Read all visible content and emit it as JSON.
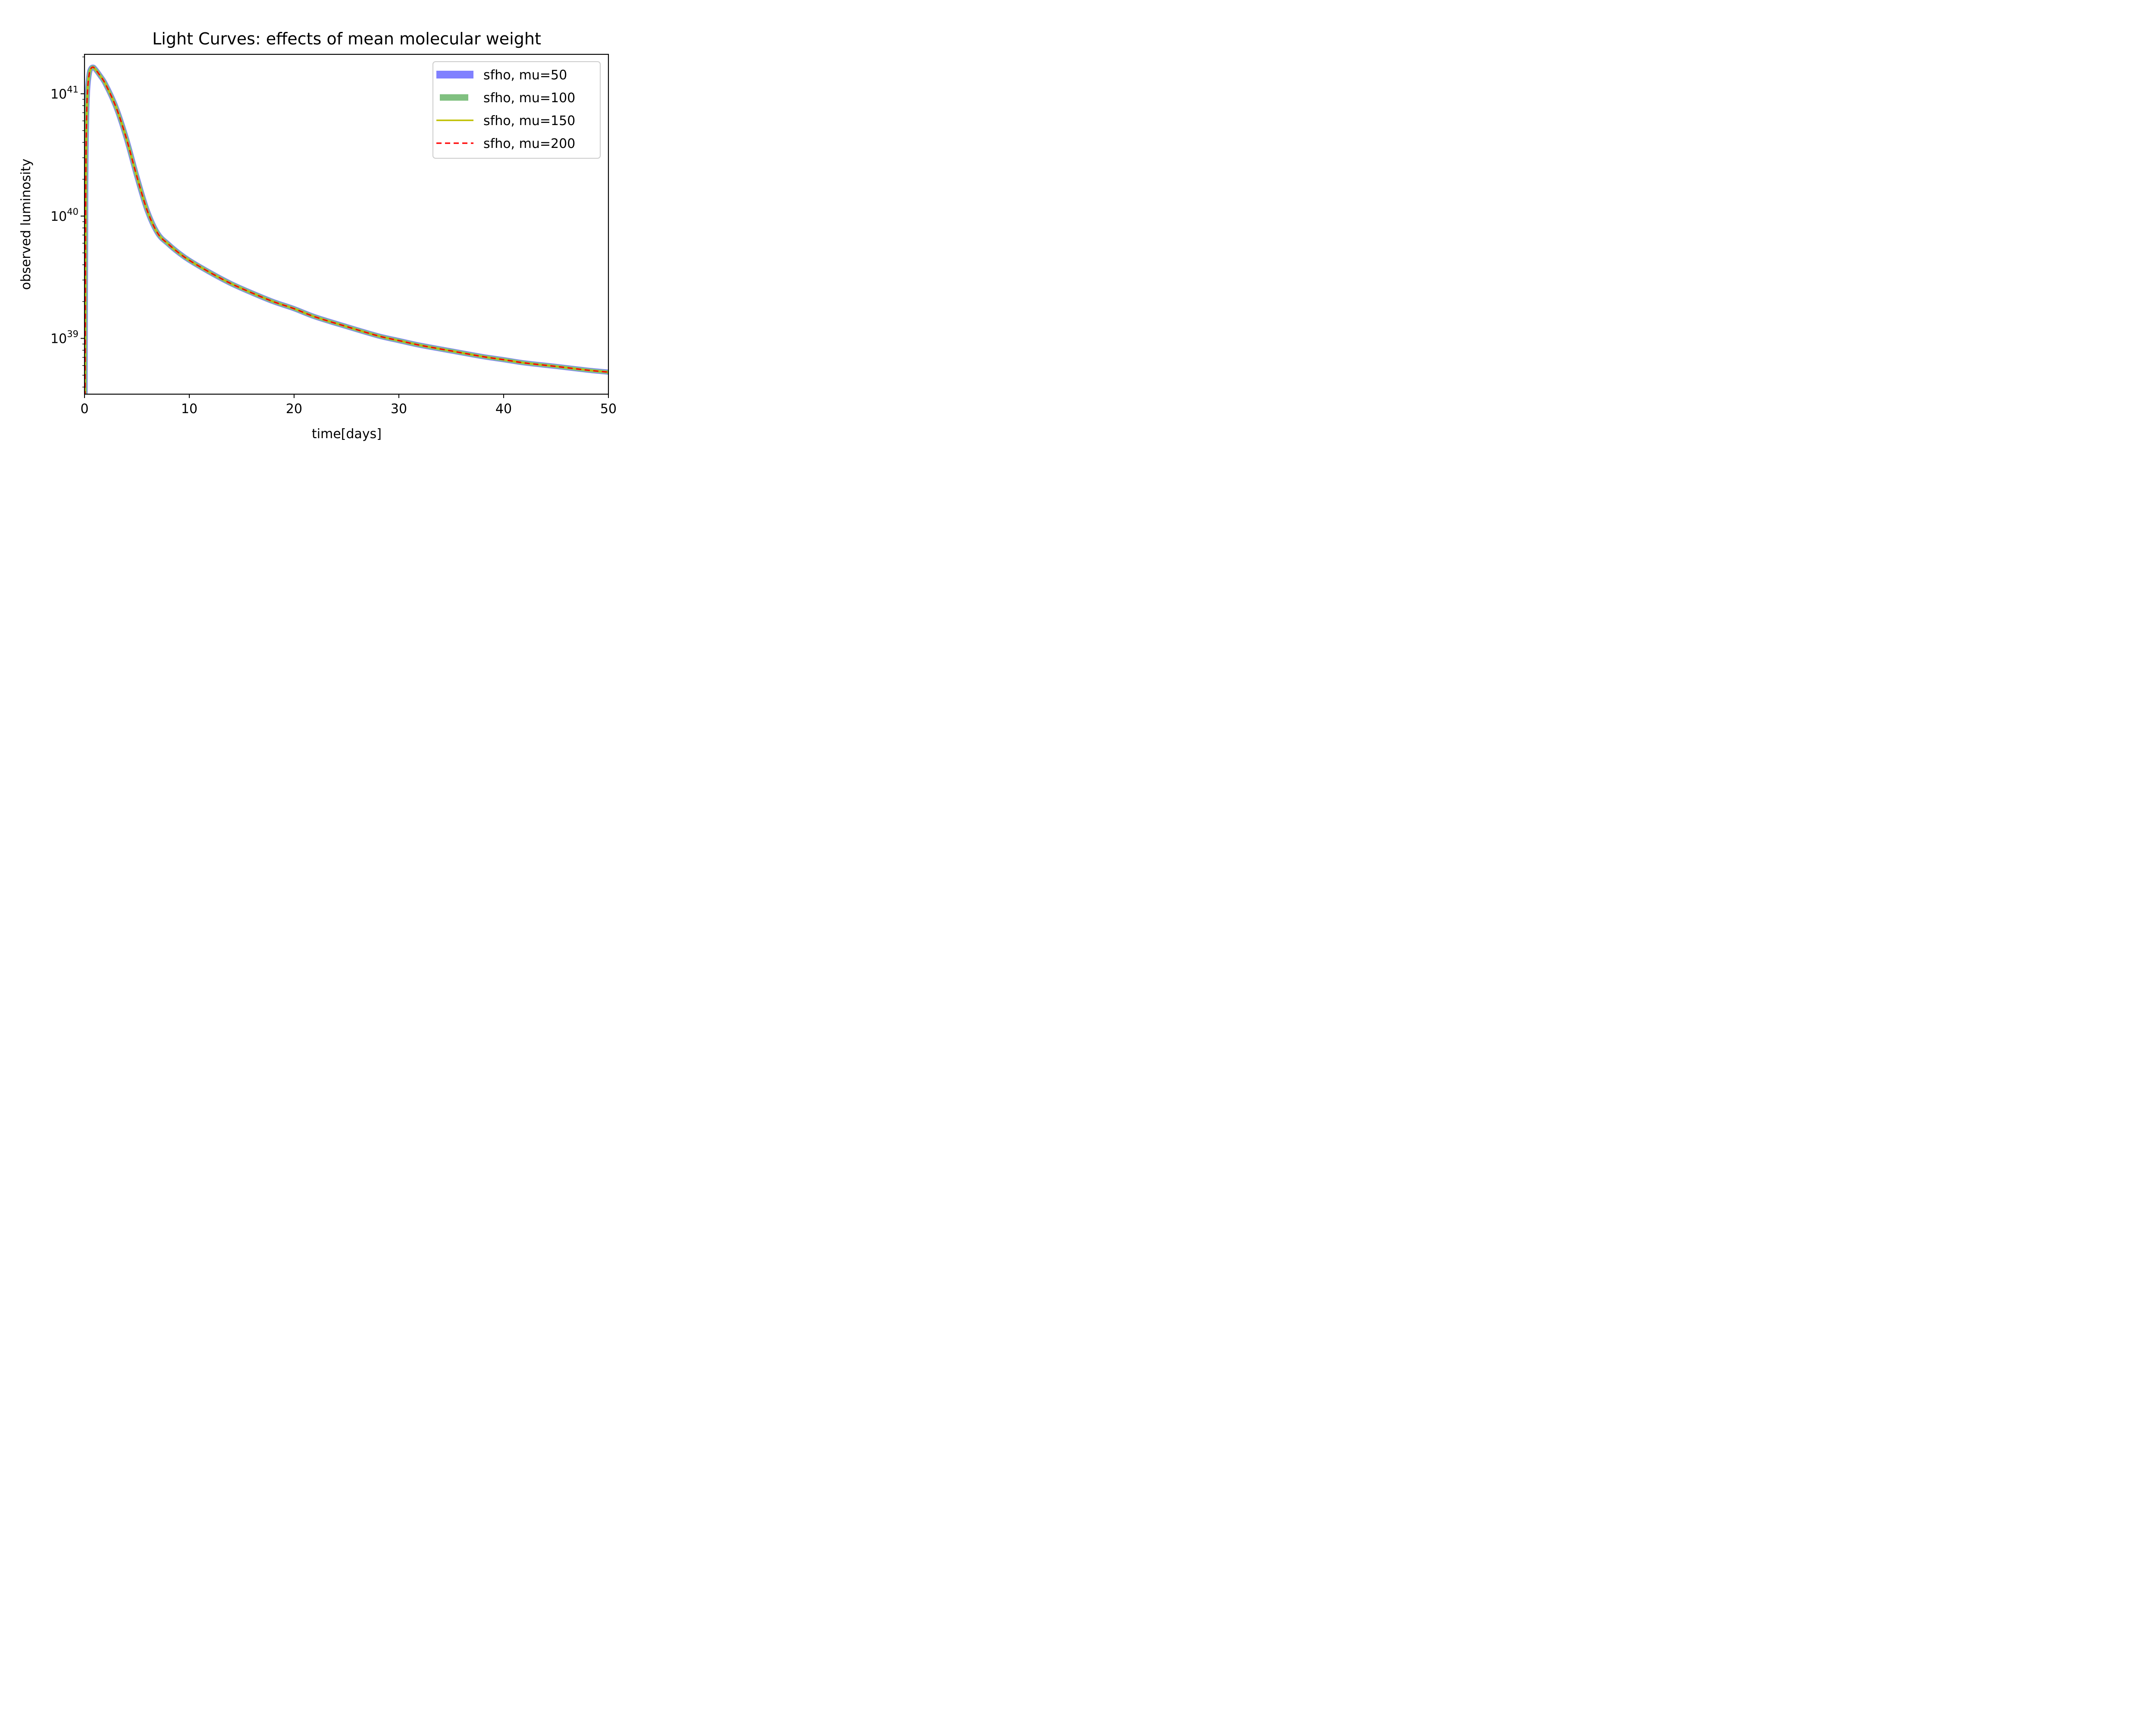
{
  "chart_data": {
    "type": "line",
    "title": "Light Curves: effects of mean molecular weight",
    "xlabel": "time[days]",
    "ylabel": "observed luminosity",
    "xlim": [
      0,
      50
    ],
    "ylim": [
      3.5e+38,
      2.1e+41
    ],
    "yscale": "log",
    "grid": false,
    "legend_position": "upper-right",
    "x_ticks": [
      {
        "value": 0,
        "label": "0"
      },
      {
        "value": 10,
        "label": "10"
      },
      {
        "value": 20,
        "label": "20"
      },
      {
        "value": 30,
        "label": "30"
      },
      {
        "value": 40,
        "label": "40"
      },
      {
        "value": 50,
        "label": "50"
      }
    ],
    "y_ticks": [
      {
        "exp": 39,
        "base": "10",
        "power": "39"
      },
      {
        "exp": 40,
        "base": "10",
        "power": "40"
      },
      {
        "exp": 41,
        "base": "10",
        "power": "41"
      }
    ],
    "x": [
      0.05,
      0.12,
      0.2,
      0.3,
      0.45,
      0.6,
      0.8,
      1.0,
      1.5,
      2,
      3,
      4,
      5,
      6,
      7,
      8,
      9,
      10,
      12,
      14,
      16,
      18,
      20,
      22,
      25,
      28,
      30,
      32,
      35,
      38,
      40,
      42,
      45,
      48,
      50
    ],
    "series": [
      {
        "name": "sfho, mu=50",
        "color": "#8080ff",
        "style": "solid-thick",
        "values": [
          3.5e+38,
          1.8e+40,
          6.5e+40,
          1.1e+41,
          1.45e+41,
          1.6e+41,
          1.65e+41,
          1.6e+41,
          1.4e+41,
          1.2e+41,
          7.8e+40,
          4.3e+40,
          2.1e+40,
          1.1e+40,
          7.2e+39,
          5.9e+39,
          5e+39,
          4.35e+39,
          3.45e+39,
          2.8e+39,
          2.35e+39,
          2e+39,
          1.75e+39,
          1.5e+39,
          1.25e+39,
          1.05e+39,
          9.6e+38,
          8.8e+38,
          7.9e+38,
          7.1e+38,
          6.7e+38,
          6.3e+38,
          5.9e+38,
          5.5e+38,
          5.3e+38
        ]
      },
      {
        "name": "sfho, mu=100",
        "color": "#80c080",
        "style": "solid-thick",
        "values": [
          3.5e+38,
          1.8e+40,
          6.5e+40,
          1.1e+41,
          1.45e+41,
          1.6e+41,
          1.65e+41,
          1.6e+41,
          1.4e+41,
          1.2e+41,
          7.8e+40,
          4.3e+40,
          2.1e+40,
          1.1e+40,
          7.2e+39,
          5.9e+39,
          5e+39,
          4.35e+39,
          3.45e+39,
          2.8e+39,
          2.35e+39,
          2e+39,
          1.75e+39,
          1.5e+39,
          1.25e+39,
          1.05e+39,
          9.6e+38,
          8.8e+38,
          7.9e+38,
          7.1e+38,
          6.7e+38,
          6.3e+38,
          5.9e+38,
          5.5e+38,
          5.3e+38
        ]
      },
      {
        "name": "sfho, mu=150",
        "color": "#bfbf00",
        "style": "solid",
        "values": [
          3.5e+38,
          1.8e+40,
          6.5e+40,
          1.1e+41,
          1.45e+41,
          1.6e+41,
          1.65e+41,
          1.6e+41,
          1.4e+41,
          1.2e+41,
          7.8e+40,
          4.3e+40,
          2.1e+40,
          1.1e+40,
          7.2e+39,
          5.9e+39,
          5e+39,
          4.35e+39,
          3.45e+39,
          2.8e+39,
          2.35e+39,
          2e+39,
          1.75e+39,
          1.5e+39,
          1.25e+39,
          1.05e+39,
          9.6e+38,
          8.8e+38,
          7.9e+38,
          7.1e+38,
          6.7e+38,
          6.3e+38,
          5.9e+38,
          5.5e+38,
          5.3e+38
        ]
      },
      {
        "name": "sfho, mu=200",
        "color": "#ff0000",
        "style": "dashed",
        "values": [
          3.5e+38,
          1.8e+40,
          6.5e+40,
          1.1e+41,
          1.45e+41,
          1.6e+41,
          1.65e+41,
          1.6e+41,
          1.4e+41,
          1.2e+41,
          7.8e+40,
          4.3e+40,
          2.1e+40,
          1.1e+40,
          7.2e+39,
          5.9e+39,
          5e+39,
          4.35e+39,
          3.45e+39,
          2.8e+39,
          2.35e+39,
          2e+39,
          1.75e+39,
          1.5e+39,
          1.25e+39,
          1.05e+39,
          9.6e+38,
          8.8e+38,
          7.9e+38,
          7.1e+38,
          6.7e+38,
          6.3e+38,
          5.9e+38,
          5.5e+38,
          5.3e+38
        ]
      }
    ]
  }
}
